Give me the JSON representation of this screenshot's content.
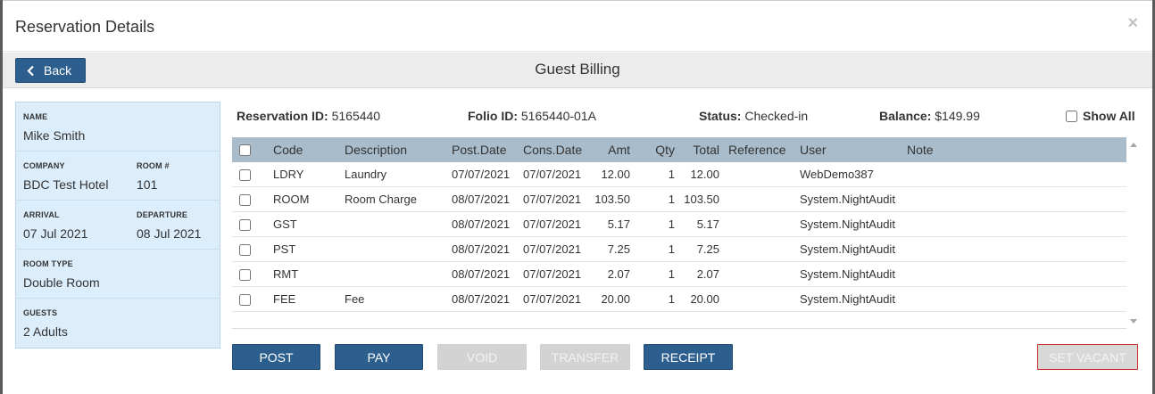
{
  "modal": {
    "title": "Reservation Details",
    "close_glyph": "×"
  },
  "toolbar": {
    "back_label": "Back",
    "title": "Guest Billing"
  },
  "guest": {
    "name_label": "NAME",
    "name": "Mike Smith",
    "company_label": "COMPANY",
    "company": "BDC Test Hotel",
    "room_label": "ROOM #",
    "room": "101",
    "arrival_label": "ARRIVAL",
    "arrival": "07 Jul 2021",
    "departure_label": "DEPARTURE",
    "departure": "08 Jul 2021",
    "room_type_label": "ROOM TYPE",
    "room_type": "Double Room",
    "guests_label": "GUESTS",
    "guests": "2 Adults"
  },
  "summary": {
    "reservation_label": "Reservation ID:",
    "reservation_id": "5165440",
    "folio_label": "Folio ID:",
    "folio_id": "5165440-01A",
    "status_label": "Status:",
    "status": "Checked-in",
    "balance_label": "Balance:",
    "balance": "$149.99",
    "show_all_label": "Show All"
  },
  "table": {
    "headers": {
      "code": "Code",
      "description": "Description",
      "post_date": "Post.Date",
      "cons_date": "Cons.Date",
      "amt": "Amt",
      "qty": "Qty",
      "total": "Total",
      "reference": "Reference",
      "user": "User",
      "note": "Note"
    },
    "rows": [
      {
        "code": "LDRY",
        "description": "Laundry",
        "post_date": "07/07/2021",
        "cons_date": "07/07/2021",
        "amt": "12.00",
        "qty": "1",
        "total": "12.00",
        "reference": "",
        "user": "WebDemo387",
        "note": ""
      },
      {
        "code": "ROOM",
        "description": "Room Charge",
        "post_date": "08/07/2021",
        "cons_date": "07/07/2021",
        "amt": "103.50",
        "qty": "1",
        "total": "103.50",
        "reference": "",
        "user": "System.NightAudit",
        "note": ""
      },
      {
        "code": "GST",
        "description": "",
        "post_date": "08/07/2021",
        "cons_date": "07/07/2021",
        "amt": "5.17",
        "qty": "1",
        "total": "5.17",
        "reference": "",
        "user": "System.NightAudit",
        "note": ""
      },
      {
        "code": "PST",
        "description": "",
        "post_date": "08/07/2021",
        "cons_date": "07/07/2021",
        "amt": "7.25",
        "qty": "1",
        "total": "7.25",
        "reference": "",
        "user": "System.NightAudit",
        "note": ""
      },
      {
        "code": "RMT",
        "description": "",
        "post_date": "08/07/2021",
        "cons_date": "07/07/2021",
        "amt": "2.07",
        "qty": "1",
        "total": "2.07",
        "reference": "",
        "user": "System.NightAudit",
        "note": ""
      },
      {
        "code": "FEE",
        "description": "Fee",
        "post_date": "08/07/2021",
        "cons_date": "07/07/2021",
        "amt": "20.00",
        "qty": "1",
        "total": "20.00",
        "reference": "",
        "user": "System.NightAudit",
        "note": ""
      }
    ]
  },
  "actions": {
    "post": "POST",
    "pay": "PAY",
    "void": "VOID",
    "transfer": "TRANSFER",
    "receipt": "RECEIPT",
    "set_vacant": "SET VACANT"
  },
  "colors": {
    "primary": "#2d5f8e",
    "header_bg": "#a9bccb",
    "side_bg": "#dcedfb",
    "danger": "#c9302c"
  }
}
